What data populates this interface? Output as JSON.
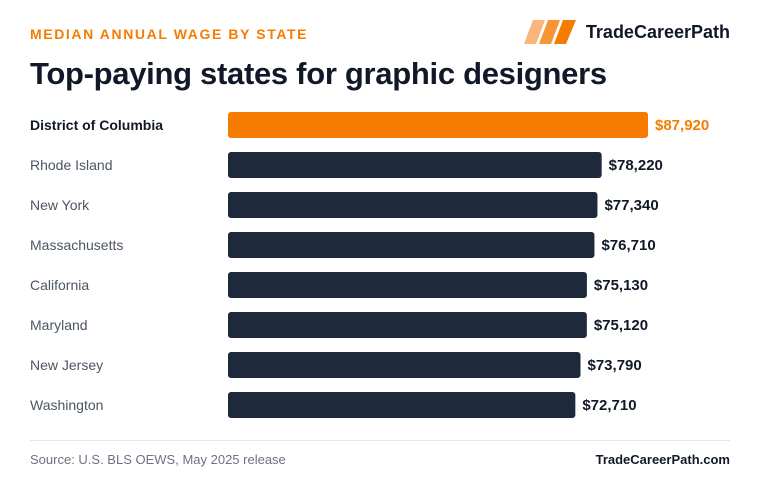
{
  "header": {
    "eyebrow": "MEDIAN ANNUAL WAGE BY STATE",
    "title": "Top-paying states for graphic designers",
    "brand_name": "TradeCareerPath",
    "logo_icon": "stripes-logo-icon"
  },
  "colors": {
    "accent": "#f57c00",
    "bar": "#1e293b",
    "text_dark": "#111827",
    "text_muted": "#4b5563"
  },
  "chart_data": {
    "type": "bar",
    "orientation": "horizontal",
    "categories": [
      "District of Columbia",
      "Rhode Island",
      "New York",
      "Massachusetts",
      "California",
      "Maryland",
      "New Jersey",
      "Washington"
    ],
    "values": [
      87920,
      78220,
      77340,
      76710,
      75130,
      75120,
      73790,
      72710
    ],
    "value_labels": [
      "$87,920",
      "$78,220",
      "$77,340",
      "$76,710",
      "$75,130",
      "$75,120",
      "$73,790",
      "$72,710"
    ],
    "highlight_index": 0,
    "xlim": [
      0,
      87920
    ],
    "grid": false,
    "legend": "none"
  },
  "footer": {
    "source": "Source: U.S. BLS OEWS, May 2025 release",
    "site": "TradeCareerPath.com"
  }
}
